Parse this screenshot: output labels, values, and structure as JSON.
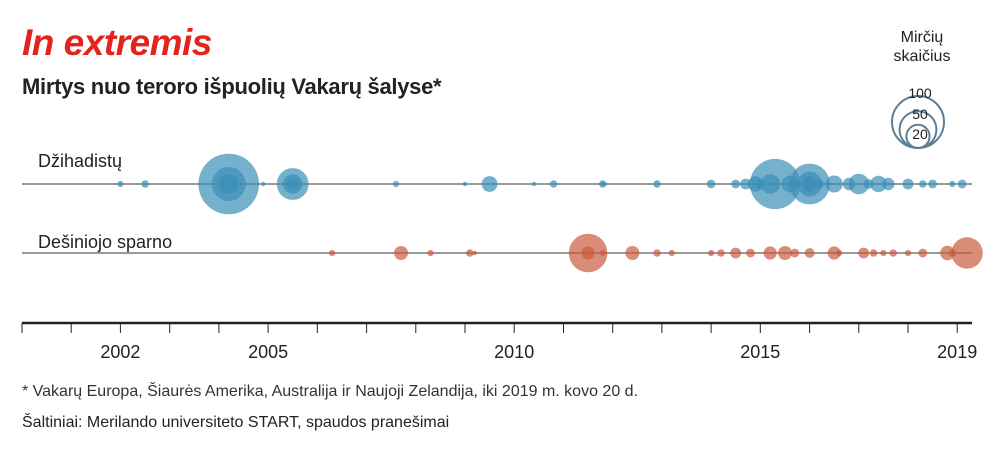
{
  "title": "In extremis",
  "subtitle": "Mirtys nuo teroro išpuolių Vakarų šalyse*",
  "footnote": "* Vakarų Europa, Šiaurės Amerika, Australija ir Naujoji Zelandija, iki 2019 m. kovo 20 d.",
  "source": "Šaltiniai: Merilando universiteto START, spaudos pranešimai",
  "colors": {
    "title": "#e3231c",
    "jihadist": "#3b8fb8",
    "rightwing": "#c95b3f",
    "legend_ring": "#5d7f95"
  },
  "chart_data": {
    "type": "bubble-timeline",
    "x_axis": {
      "range": [
        2000,
        2019.3
      ],
      "ticks": [
        2000,
        2001,
        2002,
        2003,
        2004,
        2005,
        2006,
        2007,
        2008,
        2009,
        2010,
        2011,
        2012,
        2013,
        2014,
        2015,
        2016,
        2017,
        2018,
        2019
      ],
      "tick_labels": [
        {
          "value": 2002,
          "label": "2002"
        },
        {
          "value": 2005,
          "label": "2005"
        },
        {
          "value": 2010,
          "label": "2010"
        },
        {
          "value": 2015,
          "label": "2015"
        },
        {
          "value": 2019,
          "label": "2019"
        }
      ]
    },
    "size_legend": {
      "title_lines": [
        "Mirčių",
        "skaičius"
      ],
      "values": [
        100,
        50,
        20
      ]
    },
    "series": [
      {
        "name": "Džihadistų",
        "points": [
          {
            "x": 2002.0,
            "deaths": 2
          },
          {
            "x": 2002.5,
            "deaths": 3
          },
          {
            "x": 2004.2,
            "deaths": 190
          },
          {
            "x": 2004.2,
            "deaths": 60
          },
          {
            "x": 2004.2,
            "deaths": 20
          },
          {
            "x": 2004.3,
            "deaths": 3
          },
          {
            "x": 2004.9,
            "deaths": 1
          },
          {
            "x": 2005.5,
            "deaths": 52
          },
          {
            "x": 2005.5,
            "deaths": 20
          },
          {
            "x": 2005.5,
            "deaths": 6
          },
          {
            "x": 2007.6,
            "deaths": 2
          },
          {
            "x": 2009.0,
            "deaths": 1
          },
          {
            "x": 2009.5,
            "deaths": 13
          },
          {
            "x": 2010.4,
            "deaths": 1
          },
          {
            "x": 2010.8,
            "deaths": 3
          },
          {
            "x": 2011.8,
            "deaths": 3
          },
          {
            "x": 2011.8,
            "deaths": 1
          },
          {
            "x": 2012.9,
            "deaths": 3
          },
          {
            "x": 2014.0,
            "deaths": 4
          },
          {
            "x": 2014.5,
            "deaths": 4
          },
          {
            "x": 2014.7,
            "deaths": 6
          },
          {
            "x": 2014.9,
            "deaths": 12
          },
          {
            "x": 2015.0,
            "deaths": 4
          },
          {
            "x": 2015.3,
            "deaths": 130
          },
          {
            "x": 2015.2,
            "deaths": 20
          },
          {
            "x": 2015.6,
            "deaths": 14
          },
          {
            "x": 2016.0,
            "deaths": 86
          },
          {
            "x": 2016.0,
            "deaths": 32
          },
          {
            "x": 2016.0,
            "deaths": 12
          },
          {
            "x": 2016.2,
            "deaths": 4
          },
          {
            "x": 2016.5,
            "deaths": 15
          },
          {
            "x": 2016.8,
            "deaths": 8
          },
          {
            "x": 2017.0,
            "deaths": 22
          },
          {
            "x": 2017.2,
            "deaths": 5
          },
          {
            "x": 2017.4,
            "deaths": 14
          },
          {
            "x": 2017.6,
            "deaths": 8
          },
          {
            "x": 2018.0,
            "deaths": 6
          },
          {
            "x": 2018.3,
            "deaths": 3
          },
          {
            "x": 2018.5,
            "deaths": 4
          },
          {
            "x": 2018.9,
            "deaths": 2
          },
          {
            "x": 2019.1,
            "deaths": 4
          }
        ]
      },
      {
        "name": "Dešiniojo sparno",
        "points": [
          {
            "x": 2006.3,
            "deaths": 2
          },
          {
            "x": 2007.7,
            "deaths": 10
          },
          {
            "x": 2008.3,
            "deaths": 2
          },
          {
            "x": 2009.1,
            "deaths": 3
          },
          {
            "x": 2009.2,
            "deaths": 1
          },
          {
            "x": 2011.5,
            "deaths": 77
          },
          {
            "x": 2011.5,
            "deaths": 9
          },
          {
            "x": 2011.8,
            "deaths": 2
          },
          {
            "x": 2012.4,
            "deaths": 10
          },
          {
            "x": 2012.9,
            "deaths": 3
          },
          {
            "x": 2013.2,
            "deaths": 2
          },
          {
            "x": 2014.0,
            "deaths": 2
          },
          {
            "x": 2014.2,
            "deaths": 3
          },
          {
            "x": 2014.5,
            "deaths": 6
          },
          {
            "x": 2014.8,
            "deaths": 4
          },
          {
            "x": 2015.2,
            "deaths": 9
          },
          {
            "x": 2015.5,
            "deaths": 10
          },
          {
            "x": 2015.7,
            "deaths": 4
          },
          {
            "x": 2016.0,
            "deaths": 5
          },
          {
            "x": 2016.5,
            "deaths": 9
          },
          {
            "x": 2016.6,
            "deaths": 2
          },
          {
            "x": 2017.1,
            "deaths": 6
          },
          {
            "x": 2017.3,
            "deaths": 3
          },
          {
            "x": 2017.5,
            "deaths": 2
          },
          {
            "x": 2017.7,
            "deaths": 3
          },
          {
            "x": 2018.0,
            "deaths": 2
          },
          {
            "x": 2018.3,
            "deaths": 4
          },
          {
            "x": 2018.8,
            "deaths": 11
          },
          {
            "x": 2018.9,
            "deaths": 3
          },
          {
            "x": 2019.2,
            "deaths": 51
          }
        ]
      }
    ]
  }
}
